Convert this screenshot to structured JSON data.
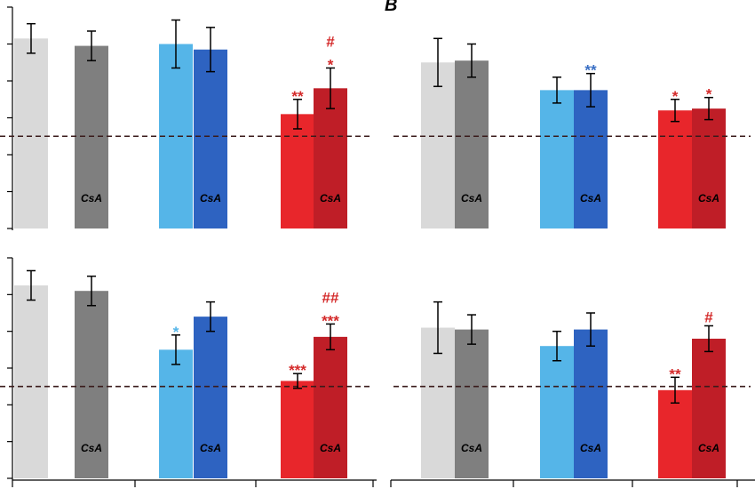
{
  "panel_letter": "B",
  "chart_data": [
    {
      "type": "bar",
      "panel": "top-left",
      "categories": [
        "",
        "CsA",
        "",
        "CsA",
        "",
        "CsA"
      ],
      "values": [
        1.03,
        0.99,
        1.0,
        0.97,
        0.62,
        0.76
      ],
      "errors": [
        0.08,
        0.08,
        0.13,
        0.12,
        0.08,
        0.11
      ],
      "colors": [
        "#d9d9d9",
        "#7f7f7f",
        "#55b5e8",
        "#2e63c1",
        "#e8262b",
        "#bf1e27"
      ],
      "annotations": [
        {
          "bar": 4,
          "text": "**",
          "color": "#d42a2a"
        },
        {
          "bar": 5,
          "text": "*",
          "color": "#d42a2a"
        },
        {
          "bar": 5,
          "text": "#",
          "color": "#d42a2a"
        }
      ],
      "ylim": [
        0,
        1.2
      ],
      "baseline": 0.5
    },
    {
      "type": "bar",
      "panel": "top-right",
      "categories": [
        "",
        "CsA",
        "",
        "CsA",
        "",
        "CsA"
      ],
      "values": [
        0.9,
        0.91,
        0.75,
        0.75,
        0.64,
        0.65
      ],
      "errors": [
        0.13,
        0.09,
        0.07,
        0.09,
        0.06,
        0.06
      ],
      "colors": [
        "#d9d9d9",
        "#7f7f7f",
        "#55b5e8",
        "#2e63c1",
        "#e8262b",
        "#bf1e27"
      ],
      "annotations": [
        {
          "bar": 3,
          "text": "**",
          "color": "#3a6fc4"
        },
        {
          "bar": 4,
          "text": "*",
          "color": "#d42a2a"
        },
        {
          "bar": 5,
          "text": "*",
          "color": "#d42a2a"
        }
      ],
      "ylim": [
        0,
        1.2
      ],
      "baseline": 0.5
    },
    {
      "type": "bar",
      "panel": "bottom-left",
      "categories": [
        "",
        "CsA",
        "",
        "CsA",
        "",
        "CsA"
      ],
      "values": [
        1.05,
        1.02,
        0.7,
        0.88,
        0.53,
        0.77
      ],
      "errors": [
        0.08,
        0.08,
        0.08,
        0.08,
        0.04,
        0.07
      ],
      "colors": [
        "#d9d9d9",
        "#7f7f7f",
        "#55b5e8",
        "#2e63c1",
        "#e8262b",
        "#bf1e27"
      ],
      "annotations": [
        {
          "bar": 2,
          "text": "*",
          "color": "#55b5e8"
        },
        {
          "bar": 4,
          "text": "***",
          "color": "#d42a2a"
        },
        {
          "bar": 5,
          "text": "***",
          "color": "#d42a2a"
        },
        {
          "bar": 5,
          "text": "##",
          "color": "#d42a2a"
        }
      ],
      "ylim": [
        0,
        1.2
      ],
      "baseline": 0.5
    },
    {
      "type": "bar",
      "panel": "bottom-right",
      "categories": [
        "",
        "CsA",
        "",
        "CsA",
        "",
        "CsA"
      ],
      "values": [
        0.82,
        0.81,
        0.72,
        0.81,
        0.48,
        0.76
      ],
      "errors": [
        0.14,
        0.08,
        0.08,
        0.09,
        0.07,
        0.07
      ],
      "colors": [
        "#d9d9d9",
        "#7f7f7f",
        "#55b5e8",
        "#2e63c1",
        "#e8262b",
        "#bf1e27"
      ],
      "annotations": [
        {
          "bar": 4,
          "text": "**",
          "color": "#d42a2a"
        },
        {
          "bar": 5,
          "text": "#",
          "color": "#d42a2a"
        }
      ],
      "ylim": [
        0,
        1.2
      ],
      "baseline": 0.5
    }
  ]
}
